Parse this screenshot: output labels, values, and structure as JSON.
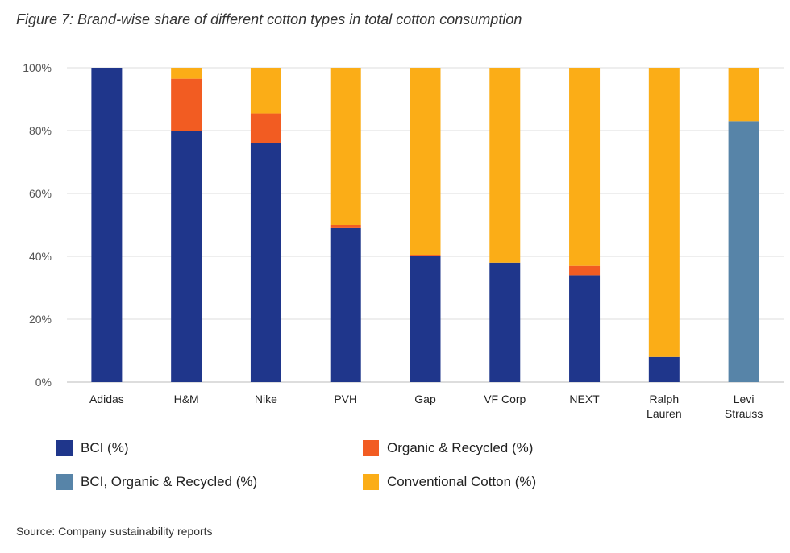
{
  "title": "Figure 7: Brand-wise share of different cotton types in total cotton consumption",
  "source": "Source: Company sustainability reports",
  "colors": {
    "bci": "#1f368b",
    "organic_recycled": "#f25c22",
    "bci_organic_recycled": "#5784a8",
    "conventional": "#fbad17",
    "grid": "#dddddd",
    "text": "#333333"
  },
  "chart_data": {
    "type": "bar",
    "stacked": true,
    "title": "Figure 7: Brand-wise share of different cotton types in total cotton consumption",
    "categories": [
      [
        "Adidas"
      ],
      [
        "H&M"
      ],
      [
        "Nike"
      ],
      [
        "PVH"
      ],
      [
        "Gap"
      ],
      [
        "VF Corp"
      ],
      [
        "NEXT"
      ],
      [
        "Ralph",
        "Lauren"
      ],
      [
        "Levi",
        "Strauss"
      ]
    ],
    "series": [
      {
        "name": "BCI (%)",
        "key": "bci",
        "values": [
          100,
          80,
          76,
          49,
          40,
          38,
          34,
          8,
          0
        ]
      },
      {
        "name": "Organic & Recycled (%)",
        "key": "organic_recycled",
        "values": [
          0,
          16.5,
          9.5,
          1,
          0.5,
          0,
          3,
          0,
          0
        ]
      },
      {
        "name": "BCI, Organic & Recycled (%)",
        "key": "bci_organic_recycled",
        "values": [
          0,
          0,
          0,
          0,
          0,
          0,
          0,
          0,
          83
        ]
      },
      {
        "name": "Conventional  Cotton (%)",
        "key": "conventional",
        "values": [
          0,
          3.5,
          14.5,
          50,
          59.5,
          62,
          63,
          92,
          17
        ]
      }
    ],
    "ylim": [
      0,
      100
    ],
    "yticks": [
      "0%",
      "20%",
      "40%",
      "60%",
      "80%",
      "100%"
    ],
    "ytick_values": [
      0,
      20,
      40,
      60,
      80,
      100
    ],
    "grid": true,
    "legend": {
      "placement": "bottom",
      "entries": [
        {
          "label": "BCI (%)",
          "key": "bci"
        },
        {
          "label": "Organic & Recycled (%)",
          "key": "organic_recycled"
        },
        {
          "label": "BCI, Organic & Recycled (%)",
          "key": "bci_organic_recycled"
        },
        {
          "label": "Conventional  Cotton (%)",
          "key": "conventional"
        }
      ]
    }
  }
}
